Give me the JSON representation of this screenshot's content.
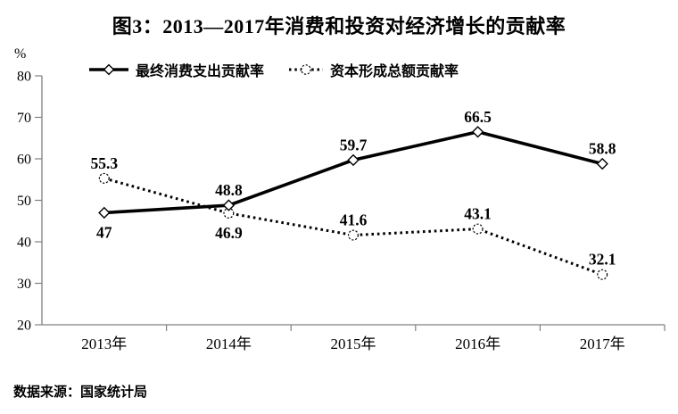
{
  "title": "图3：2013—2017年消费和投资对经济增长的贡献率",
  "source_note": "数据来源：国家统计局",
  "chart_data": {
    "type": "line",
    "title": "图3：2013—2017年消费和投资对经济增长的贡献率",
    "categories": [
      "2013年",
      "2014年",
      "2015年",
      "2016年",
      "2017年"
    ],
    "series": [
      {
        "name": "最终消费支出贡献率",
        "style": "solid",
        "marker": "diamond",
        "values": [
          47,
          48.8,
          59.7,
          66.5,
          58.8
        ],
        "labels": [
          "47",
          "48.8",
          "59.7",
          "66.5",
          "58.8"
        ],
        "label_positions": [
          "below",
          "above",
          "above",
          "above",
          "above"
        ]
      },
      {
        "name": "资本形成总额贡献率",
        "style": "dotted",
        "marker": "circle",
        "values": [
          55.3,
          46.9,
          41.6,
          43.1,
          32.1
        ],
        "labels": [
          "55.3",
          "46.9",
          "41.6",
          "43.1",
          "32.1"
        ],
        "label_positions": [
          "above",
          "below",
          "above",
          "above",
          "above"
        ]
      }
    ],
    "xlabel": "",
    "ylabel": "%",
    "ylim": [
      20,
      80
    ],
    "yticks": [
      20,
      30,
      40,
      50,
      60,
      70,
      80
    ],
    "grid": false,
    "legend_position": "top",
    "colors": {
      "series": "#000000",
      "axis": "#808080",
      "text": "#000000",
      "background": "#ffffff"
    }
  }
}
